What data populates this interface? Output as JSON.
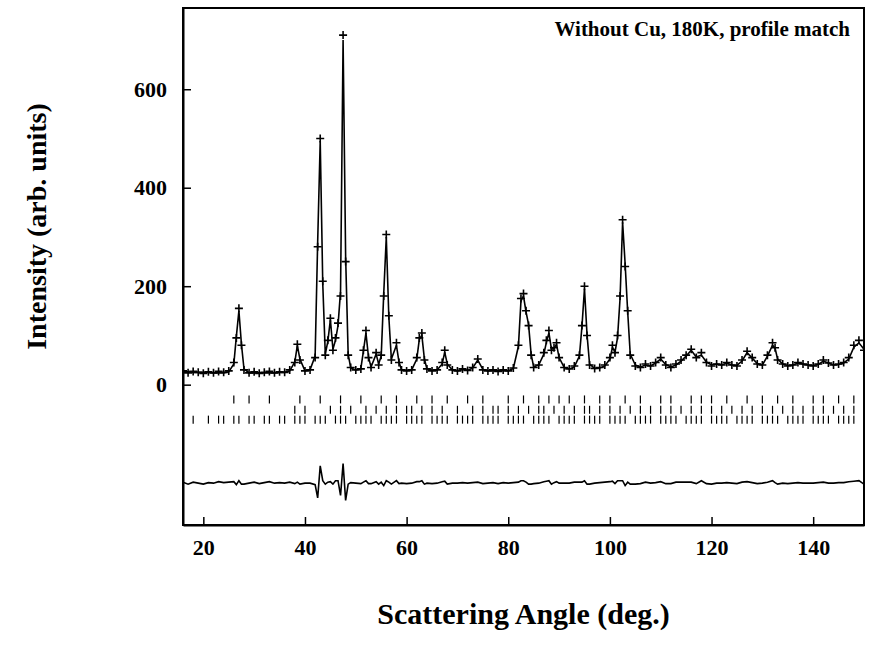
{
  "chart_data": {
    "type": "scatter",
    "annotation": "Without Cu, 180K, profile match",
    "x_label": "Scattering Angle (deg.)",
    "y_label": "Intensity (arb. units)",
    "xlim": [
      16,
      150
    ],
    "ylim": [
      -285,
      765
    ],
    "xticks": [
      20,
      40,
      60,
      80,
      100,
      120,
      140
    ],
    "yticks": [
      0,
      200,
      400,
      600
    ],
    "x": [
      16,
      17,
      18,
      19,
      20,
      21,
      22,
      23,
      24,
      25,
      26,
      26.5,
      27,
      27.5,
      28,
      29,
      30,
      31,
      32,
      33,
      34,
      35,
      36,
      37,
      38,
      38.5,
      39,
      40,
      41,
      42,
      42.5,
      43,
      43.5,
      44,
      44.5,
      45,
      45.5,
      46,
      46.5,
      47,
      47.5,
      48,
      48.5,
      49,
      50,
      51,
      51.5,
      52,
      52.5,
      53,
      54,
      54.5,
      55,
      55.5,
      56,
      56.5,
      57,
      58,
      58.5,
      59,
      60,
      61,
      62,
      62.5,
      63,
      63.5,
      64,
      65,
      66,
      67,
      67.5,
      68,
      69,
      70,
      71,
      72,
      73,
      74,
      75,
      76,
      77,
      78,
      79,
      80,
      81,
      82,
      82.5,
      83,
      83.5,
      84,
      84.5,
      85,
      86,
      87,
      87.5,
      88,
      88.5,
      89,
      89.5,
      90,
      91,
      92,
      93,
      94,
      94.5,
      95,
      95.5,
      96,
      97,
      98,
      99,
      100,
      100.5,
      101,
      101.5,
      102,
      102.5,
      103,
      103.5,
      104,
      105,
      106,
      107,
      108,
      109,
      110,
      111,
      112,
      113,
      114,
      115,
      116,
      117,
      118,
      119,
      120,
      121,
      122,
      123,
      124,
      125,
      126,
      127,
      128,
      129,
      130,
      131,
      132,
      132.5,
      133,
      134,
      135,
      136,
      137,
      138,
      139,
      140,
      141,
      142,
      143,
      144,
      145,
      146,
      147,
      148,
      149,
      150
    ],
    "series": [
      {
        "type": "scatter",
        "marker": "cross",
        "color": "#000000",
        "values": [
          28,
          24,
          27,
          25,
          23,
          26,
          24,
          27,
          25,
          28,
          45,
          95,
          155,
          80,
          30,
          24,
          26,
          23,
          25,
          27,
          24,
          26,
          25,
          30,
          45,
          82,
          50,
          28,
          30,
          55,
          280,
          500,
          210,
          60,
          90,
          135,
          70,
          95,
          125,
          180,
          710,
          250,
          60,
          35,
          30,
          32,
          70,
          110,
          55,
          35,
          65,
          40,
          60,
          180,
          305,
          140,
          50,
          85,
          45,
          30,
          28,
          30,
          55,
          95,
          105,
          50,
          32,
          28,
          30,
          45,
          70,
          40,
          30,
          28,
          32,
          29,
          35,
          52,
          30,
          28,
          30,
          27,
          30,
          28,
          34,
          80,
          175,
          185,
          150,
          120,
          60,
          35,
          40,
          65,
          90,
          110,
          70,
          75,
          85,
          55,
          35,
          32,
          38,
          60,
          120,
          200,
          100,
          40,
          33,
          35,
          40,
          55,
          80,
          65,
          100,
          180,
          335,
          240,
          150,
          60,
          38,
          35,
          42,
          38,
          45,
          55,
          40,
          35,
          42,
          50,
          60,
          72,
          55,
          65,
          45,
          38,
          42,
          40,
          45,
          40,
          38,
          50,
          68,
          55,
          42,
          40,
          60,
          85,
          75,
          50,
          42,
          38,
          40,
          45,
          42,
          40,
          38,
          42,
          50,
          44,
          40,
          42,
          45,
          55,
          80,
          90,
          70
        ]
      },
      {
        "type": "line",
        "color": "#000000",
        "values": [
          26,
          26,
          25,
          25,
          25,
          25,
          24,
          24,
          24,
          26,
          42,
          98,
          150,
          82,
          32,
          24,
          24,
          24,
          24,
          24,
          24,
          25,
          25,
          28,
          46,
          80,
          52,
          28,
          30,
          58,
          290,
          495,
          205,
          62,
          88,
          132,
          72,
          90,
          120,
          190,
          700,
          260,
          62,
          34,
          30,
          33,
          68,
          105,
          56,
          36,
          62,
          42,
          58,
          185,
          300,
          138,
          52,
          80,
          46,
          30,
          29,
          30,
          52,
          92,
          100,
          52,
          32,
          29,
          30,
          42,
          66,
          42,
          30,
          28,
          31,
          29,
          34,
          50,
          31,
          28,
          29,
          28,
          29,
          28,
          33,
          78,
          170,
          180,
          148,
          122,
          62,
          36,
          40,
          62,
          86,
          105,
          72,
          74,
          82,
          55,
          35,
          32,
          36,
          58,
          118,
          195,
          102,
          42,
          33,
          34,
          38,
          52,
          76,
          66,
          95,
          175,
          330,
          245,
          148,
          62,
          40,
          36,
          40,
          38,
          44,
          52,
          41,
          36,
          40,
          48,
          58,
          70,
          56,
          60,
          46,
          40,
          42,
          40,
          44,
          40,
          39,
          48,
          65,
          54,
          43,
          40,
          58,
          80,
          74,
          52,
          42,
          39,
          40,
          44,
          42,
          40,
          39,
          41,
          48,
          44,
          40,
          41,
          44,
          52,
          76,
          85,
          72
        ]
      },
      {
        "type": "line",
        "color": "#000000",
        "values": [
          -198,
          -202,
          -198,
          -200,
          -202,
          -199,
          -200,
          -197,
          -199,
          -198,
          -197,
          -203,
          -195,
          -202,
          -202,
          -200,
          -198,
          -201,
          -199,
          -197,
          -200,
          -199,
          -200,
          -198,
          -201,
          -198,
          -202,
          -200,
          -200,
          -203,
          -230,
          -165,
          -195,
          -202,
          -198,
          -197,
          -202,
          -195,
          -195,
          -225,
          -160,
          -235,
          -202,
          -199,
          -200,
          -201,
          -198,
          -195,
          -201,
          -201,
          -197,
          -202,
          -198,
          -205,
          -195,
          -198,
          -202,
          -195,
          -201,
          -200,
          -201,
          -200,
          -197,
          -197,
          -195,
          -202,
          -200,
          -201,
          -200,
          -197,
          -196,
          -202,
          -200,
          -200,
          -199,
          -200,
          -199,
          -198,
          -201,
          -200,
          -199,
          -201,
          -199,
          -200,
          -199,
          -198,
          -195,
          -195,
          -198,
          -202,
          -202,
          -201,
          -200,
          -197,
          -196,
          -195,
          -202,
          -199,
          -197,
          -200,
          -200,
          -200,
          -198,
          -198,
          -198,
          -195,
          -202,
          -202,
          -200,
          -199,
          -198,
          -197,
          -196,
          -201,
          -195,
          -195,
          -195,
          -205,
          -198,
          -202,
          -202,
          -201,
          -198,
          -200,
          -199,
          -197,
          -201,
          -201,
          -198,
          -198,
          -198,
          -198,
          -201,
          -195,
          -201,
          -202,
          -200,
          -200,
          -199,
          -200,
          -201,
          -198,
          -197,
          -199,
          -201,
          -200,
          -198,
          -195,
          -199,
          -202,
          -200,
          -201,
          -200,
          -199,
          -200,
          -200,
          -200,
          -199,
          -198,
          -200,
          -200,
          -199,
          -199,
          -197,
          -196,
          -195,
          -202
        ]
      }
    ],
    "bragg": [
      {
        "level": -30,
        "x": [
          26,
          29,
          33,
          39,
          43,
          47,
          51,
          55,
          58,
          62,
          65,
          68,
          72,
          75,
          80,
          83,
          86,
          88,
          90,
          92,
          95,
          98,
          100,
          103,
          106,
          110,
          112,
          116,
          118,
          120,
          123,
          127,
          130,
          133,
          136,
          140,
          142,
          145,
          148
        ]
      },
      {
        "level": -51,
        "x": [
          38,
          40,
          45,
          47,
          49,
          52,
          54,
          56,
          58,
          60,
          61,
          63,
          65,
          67,
          70,
          73,
          75,
          77,
          78,
          80,
          82,
          84,
          86,
          87,
          89,
          91,
          93,
          95,
          96,
          98,
          100,
          102,
          104,
          106,
          108,
          110,
          112,
          114,
          116,
          118,
          120,
          122,
          124,
          126,
          128,
          130,
          132,
          134,
          136,
          138,
          140,
          142,
          144,
          146,
          148
        ]
      },
      {
        "level": -71,
        "x": [
          18,
          21,
          23,
          24,
          26,
          27,
          29,
          30,
          32,
          33,
          35,
          36,
          38,
          39,
          40,
          42,
          43,
          44,
          46,
          47,
          48,
          50,
          51,
          52,
          53,
          55,
          56,
          57,
          58,
          60,
          61,
          62,
          63,
          65,
          66,
          67,
          68,
          70,
          71,
          72,
          73,
          75,
          76,
          77,
          78,
          80,
          81,
          82,
          83,
          85,
          86,
          87,
          88,
          90,
          91,
          92,
          93,
          95,
          96,
          97,
          98,
          100,
          101,
          102,
          103,
          105,
          106,
          107,
          108,
          110,
          111,
          112,
          113,
          115,
          116,
          117,
          118,
          120,
          121,
          122,
          123,
          125,
          126,
          127,
          128,
          130,
          131,
          132,
          133,
          135,
          136,
          137,
          138,
          140,
          141,
          142,
          143,
          145,
          146,
          147,
          148
        ]
      }
    ]
  }
}
